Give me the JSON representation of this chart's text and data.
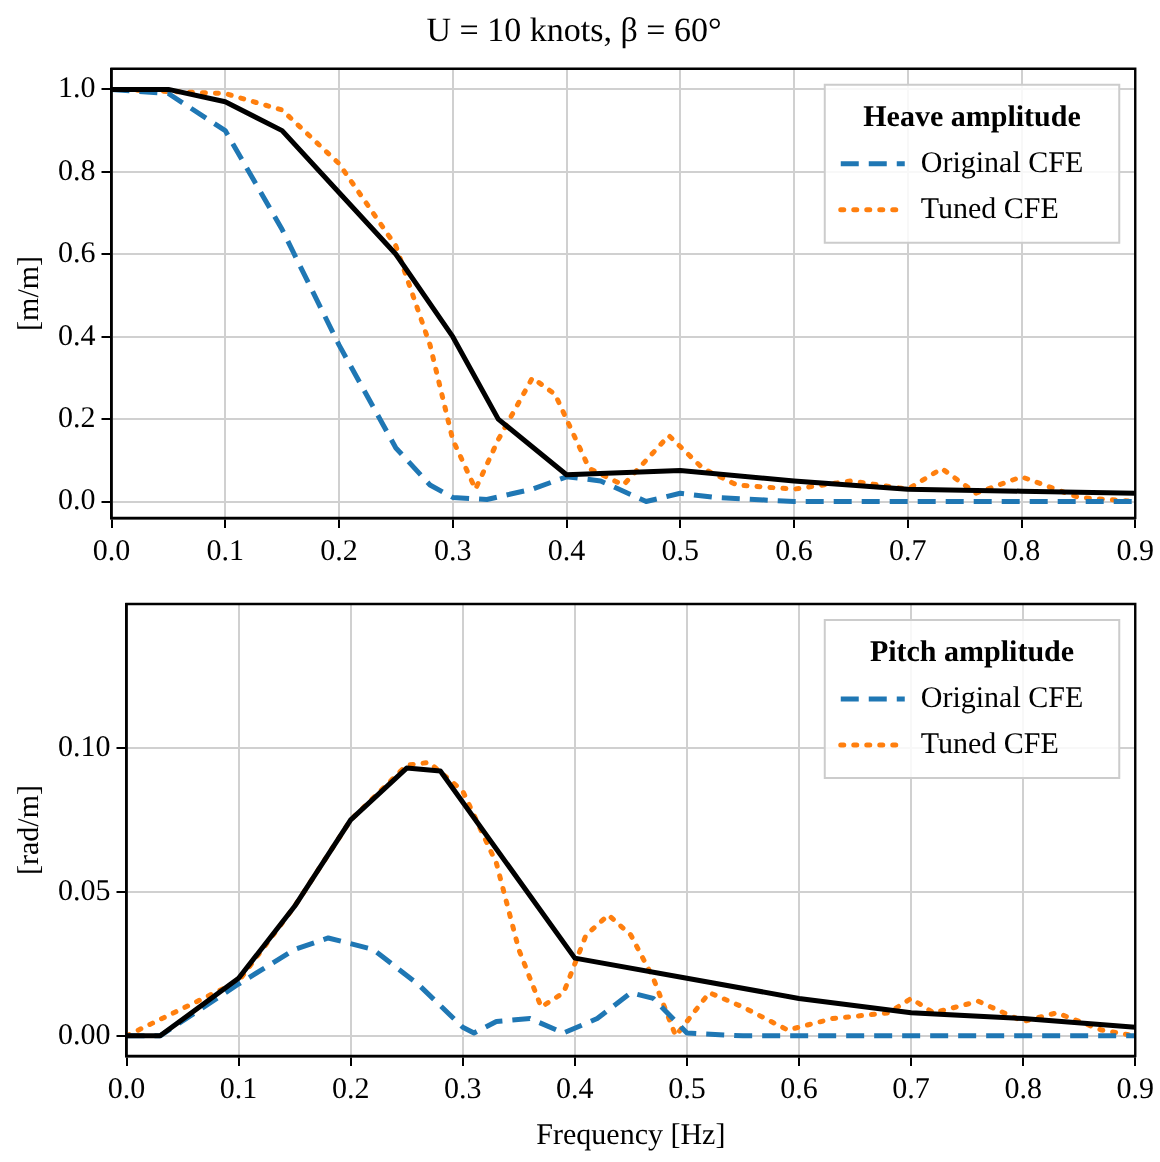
{
  "chart_data": [
    {
      "type": "line",
      "title": "U = 10 knots, β = 60°",
      "ylabel": "[m/m]",
      "legend_title": "Heave amplitude",
      "xlim": [
        0,
        0.9
      ],
      "xticks": [
        {
          "value": 0,
          "label": "0.0"
        },
        0.1,
        0.2,
        0.3,
        0.4,
        0.5,
        0.6,
        0.7,
        0.8,
        0.9
      ],
      "ylim": [
        -0.04,
        1.05
      ],
      "yticks": [
        {
          "value": 0,
          "label": "0.0"
        },
        0.2,
        0.4,
        0.6,
        0.8,
        {
          "value": 1,
          "label": "1.0"
        }
      ],
      "grid": true,
      "legend": "top right",
      "series": [
        {
          "color": "#000000",
          "line_style": "solid",
          "x": [
            0,
            0.05,
            0.1,
            0.15,
            0.2,
            0.25,
            0.3,
            0.34,
            0.4,
            0.5,
            0.6,
            0.7,
            0.8,
            0.9
          ],
          "values": [
            1,
            1,
            0.97,
            0.9,
            0.75,
            0.6,
            0.4,
            0.2,
            0.065,
            0.075,
            0.05,
            0.03,
            0.025,
            0.02
          ]
        },
        {
          "name": "Original CFE",
          "color": "#1f77b4",
          "line_style": "dashed",
          "x": [
            0,
            0.05,
            0.1,
            0.15,
            0.2,
            0.25,
            0.28,
            0.3,
            0.33,
            0.37,
            0.4,
            0.43,
            0.47,
            0.5,
            0.53,
            0.6,
            0.9
          ],
          "values": [
            1,
            0.99,
            0.9,
            0.66,
            0.38,
            0.13,
            0.04,
            0.01,
            0.005,
            0.03,
            0.06,
            0.05,
            0,
            0.02,
            0.01,
            0,
            0
          ]
        },
        {
          "name": "Tuned CFE",
          "color": "#ff7f0e",
          "line_style": "dotted",
          "x": [
            0,
            0.1,
            0.15,
            0.2,
            0.25,
            0.28,
            0.3,
            0.32,
            0.34,
            0.37,
            0.39,
            0.42,
            0.45,
            0.49,
            0.52,
            0.55,
            0.6,
            0.65,
            0.7,
            0.73,
            0.76,
            0.8,
            0.85,
            0.9
          ],
          "values": [
            1,
            0.99,
            0.95,
            0.82,
            0.62,
            0.38,
            0.15,
            0.03,
            0.15,
            0.3,
            0.26,
            0.08,
            0.04,
            0.16,
            0.08,
            0.04,
            0.03,
            0.05,
            0.03,
            0.08,
            0.02,
            0.06,
            0.01,
            0
          ]
        }
      ]
    },
    {
      "type": "line",
      "xlabel": "Frequency [Hz]",
      "ylabel": "[rad/m]",
      "legend_title": "Pitch amplitude",
      "xlim": [
        0,
        0.9
      ],
      "xticks": [
        {
          "value": 0,
          "label": "0.0"
        },
        0.1,
        0.2,
        0.3,
        0.4,
        0.5,
        0.6,
        0.7,
        0.8,
        0.9
      ],
      "ylim": [
        -0.007,
        0.15
      ],
      "yticks": [
        {
          "value": 0,
          "label": "0.00"
        },
        0.05,
        {
          "value": 0.1,
          "label": "0.10"
        }
      ],
      "grid": true,
      "legend": "top right",
      "series": [
        {
          "color": "#000000",
          "line_style": "solid",
          "x": [
            0,
            0.03,
            0.1,
            0.15,
            0.2,
            0.25,
            0.28,
            0.4,
            0.5,
            0.6,
            0.7,
            0.8,
            0.9
          ],
          "values": [
            0,
            0,
            0.02,
            0.045,
            0.075,
            0.093,
            0.092,
            0.027,
            0.02,
            0.013,
            0.008,
            0.006,
            0.003
          ]
        },
        {
          "name": "Original CFE",
          "color": "#1f77b4",
          "line_style": "dashed",
          "x": [
            0,
            0.03,
            0.1,
            0.15,
            0.18,
            0.22,
            0.26,
            0.3,
            0.31,
            0.33,
            0.36,
            0.39,
            0.42,
            0.45,
            0.47,
            0.5,
            0.55,
            0.9
          ],
          "values": [
            0,
            0,
            0.018,
            0.03,
            0.034,
            0.03,
            0.018,
            0.003,
            0.001,
            0.005,
            0.006,
            0.001,
            0.006,
            0.015,
            0.013,
            0.001,
            0,
            0
          ]
        },
        {
          "name": "Tuned CFE",
          "color": "#ff7f0e",
          "line_style": "dotted",
          "x": [
            0,
            0.1,
            0.15,
            0.2,
            0.25,
            0.27,
            0.3,
            0.33,
            0.35,
            0.37,
            0.39,
            0.41,
            0.43,
            0.45,
            0.47,
            0.49,
            0.52,
            0.55,
            0.59,
            0.63,
            0.68,
            0.7,
            0.72,
            0.76,
            0.8,
            0.83,
            0.87,
            0.9
          ],
          "values": [
            0,
            0.019,
            0.045,
            0.075,
            0.094,
            0.095,
            0.085,
            0.06,
            0.03,
            0.01,
            0.015,
            0.035,
            0.042,
            0.035,
            0.02,
            0,
            0.015,
            0.01,
            0.002,
            0.006,
            0.008,
            0.013,
            0.008,
            0.012,
            0.005,
            0.008,
            0.002,
            0
          ]
        }
      ]
    }
  ]
}
